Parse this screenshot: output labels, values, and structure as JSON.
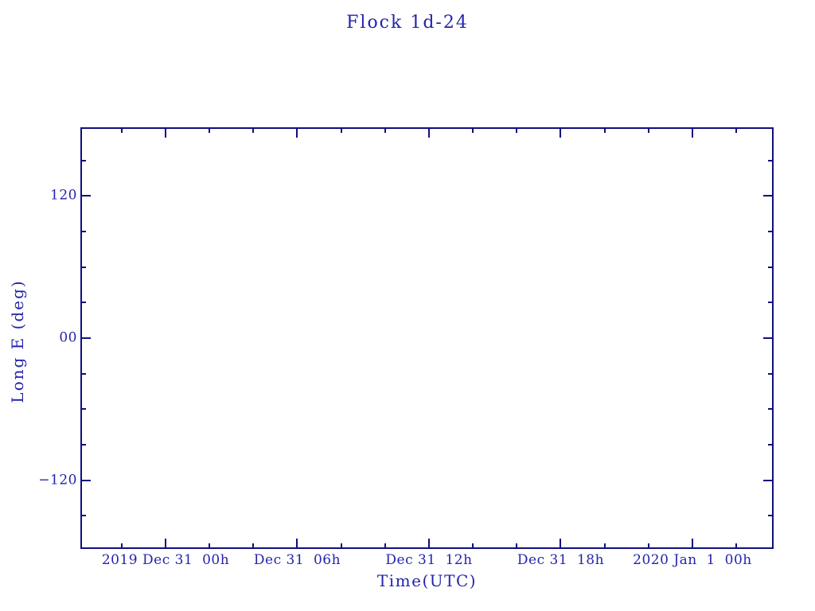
{
  "colors": {
    "axis": "#0f0f80",
    "text": "#2424ad",
    "background": "#ffffff"
  },
  "chart_data": {
    "type": "line",
    "title": "Flock 1d-24",
    "xlabel": "Time(UTC)",
    "ylabel": "Long E (deg)",
    "series": [],
    "grid": false,
    "legend": "none",
    "x_axis": {
      "unit_hours_origin": "2019 Dec 31 00h UTC",
      "range_hours": [
        -3.88,
        27.7
      ],
      "major_ticks": [
        {
          "value": 0,
          "label": "2019 Dec 31  00h"
        },
        {
          "value": 6,
          "label": "Dec 31  06h"
        },
        {
          "value": 12,
          "label": "Dec 31  12h"
        },
        {
          "value": 18,
          "label": "Dec 31  18h"
        },
        {
          "value": 24,
          "label": "2020 Jan  1  00h"
        }
      ],
      "minor_ticks": [
        -2,
        2,
        4,
        8,
        10,
        14,
        16,
        20,
        22,
        26
      ]
    },
    "y_axis": {
      "unit": "deg",
      "range": [
        -178,
        178
      ],
      "major_ticks": [
        {
          "value": 120,
          "label": "120"
        },
        {
          "value": 0,
          "label": "00"
        },
        {
          "value": -120,
          "label": "−120"
        }
      ],
      "minor_ticks": [
        -150,
        -90,
        -60,
        -30,
        30,
        60,
        90,
        150
      ]
    }
  }
}
